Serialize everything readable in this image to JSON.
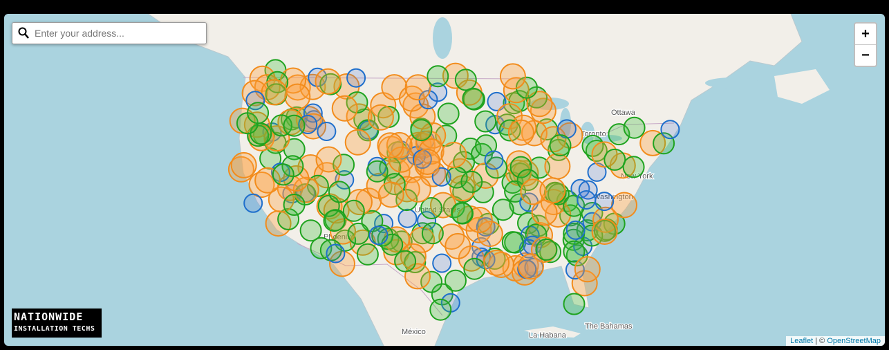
{
  "search": {
    "placeholder": "Enter your address..."
  },
  "zoom": {
    "in": "+",
    "out": "−"
  },
  "labels": [
    "Ottawa",
    "Toronto",
    "New York",
    "Washington",
    "United States",
    "Phoenix",
    "México",
    "La Habana",
    "The Bahamas"
  ],
  "logo": {
    "line1": "NATIONWIDE",
    "line2": "INSTALLATION TECHS"
  },
  "attribution": {
    "leaflet": "Leaflet",
    "separator": "|",
    "copyright": "©",
    "osm": "OpenStreetMap"
  }
}
